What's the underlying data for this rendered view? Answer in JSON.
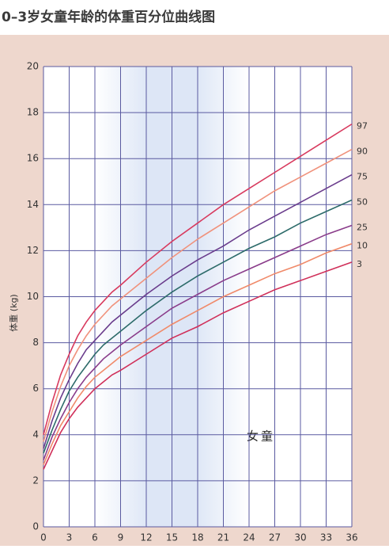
{
  "chart_data": {
    "type": "line",
    "title": "0–3岁女童年龄的体重百分位曲线图",
    "y_label": "体重 (kg)",
    "annotation": "女童",
    "x": [
      0,
      1,
      2,
      3,
      4,
      5,
      6,
      7,
      8,
      9,
      12,
      15,
      18,
      21,
      24,
      27,
      30,
      33,
      36
    ],
    "xlim": [
      0,
      36
    ],
    "xticks": [
      0,
      3,
      6,
      9,
      12,
      15,
      18,
      21,
      24,
      27,
      30,
      33,
      36
    ],
    "ylim": [
      0,
      20
    ],
    "yticks": [
      0,
      2,
      4,
      6,
      8,
      10,
      12,
      14,
      16,
      18,
      20
    ],
    "grid": true,
    "series": [
      {
        "name": "97",
        "color": "#d83a5e",
        "values": [
          4.0,
          5.4,
          6.6,
          7.5,
          8.3,
          8.9,
          9.4,
          9.8,
          10.2,
          10.5,
          11.5,
          12.4,
          13.2,
          14.0,
          14.7,
          15.4,
          16.1,
          16.8,
          17.5
        ]
      },
      {
        "name": "90",
        "color": "#f0927c",
        "values": [
          3.7,
          5.0,
          6.1,
          7.0,
          7.7,
          8.3,
          8.8,
          9.2,
          9.6,
          9.9,
          10.8,
          11.7,
          12.5,
          13.2,
          13.9,
          14.6,
          15.2,
          15.8,
          16.4
        ]
      },
      {
        "name": "75",
        "color": "#6a3c8c",
        "values": [
          3.4,
          4.6,
          5.6,
          6.4,
          7.1,
          7.7,
          8.1,
          8.5,
          8.9,
          9.2,
          10.1,
          10.9,
          11.6,
          12.2,
          12.9,
          13.5,
          14.1,
          14.7,
          15.3
        ]
      },
      {
        "name": "50",
        "color": "#2d6b6a",
        "values": [
          3.2,
          4.2,
          5.1,
          5.9,
          6.5,
          7.0,
          7.5,
          7.9,
          8.2,
          8.5,
          9.4,
          10.2,
          10.9,
          11.5,
          12.1,
          12.6,
          13.2,
          13.7,
          14.2
        ]
      },
      {
        "name": "25",
        "color": "#8a3c8a",
        "values": [
          2.9,
          3.9,
          4.7,
          5.4,
          6.0,
          6.5,
          6.9,
          7.3,
          7.6,
          7.9,
          8.7,
          9.5,
          10.1,
          10.7,
          11.2,
          11.7,
          12.2,
          12.7,
          13.1
        ]
      },
      {
        "name": "10",
        "color": "#f08a6a",
        "values": [
          2.7,
          3.6,
          4.4,
          5.0,
          5.6,
          6.1,
          6.5,
          6.8,
          7.1,
          7.4,
          8.1,
          8.8,
          9.4,
          10.0,
          10.5,
          11.0,
          11.4,
          11.9,
          12.3
        ]
      },
      {
        "name": "3",
        "color": "#d0305a",
        "values": [
          2.5,
          3.3,
          4.1,
          4.7,
          5.2,
          5.6,
          6.0,
          6.3,
          6.6,
          6.8,
          7.5,
          8.2,
          8.7,
          9.3,
          9.8,
          10.3,
          10.7,
          11.1,
          11.5
        ]
      }
    ]
  }
}
